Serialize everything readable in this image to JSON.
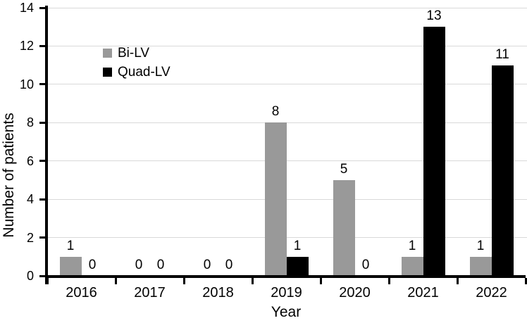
{
  "figure": {
    "background": "#ffffff",
    "text_color": "#000000"
  },
  "chart_data": {
    "type": "bar",
    "title": "",
    "xlabel": "Year",
    "ylabel": "Number of patients",
    "categories": [
      "2016",
      "2017",
      "2018",
      "2019",
      "2020",
      "2021",
      "2022"
    ],
    "series": [
      {
        "name": "Bi-LV",
        "color": "#999999",
        "values": [
          1,
          0,
          0,
          8,
          5,
          1,
          1
        ]
      },
      {
        "name": "Quad-LV",
        "color": "#000000",
        "values": [
          0,
          0,
          0,
          1,
          0,
          13,
          11
        ]
      }
    ],
    "ylim": [
      0,
      14
    ],
    "yticks": [
      0,
      2,
      4,
      6,
      8,
      10,
      12,
      14
    ],
    "grid": true,
    "gridline_color": "#d9d9d9",
    "axis_color": "#000000",
    "legend_position": "upper-left",
    "bar_value_labels": true
  }
}
